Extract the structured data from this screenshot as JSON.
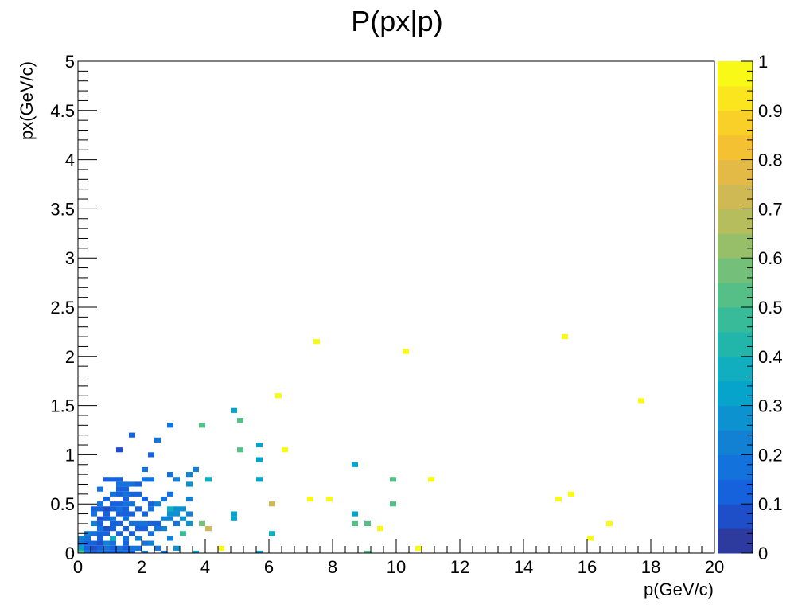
{
  "chart_data": {
    "type": "heatmap",
    "title": "P(px|p)",
    "xlabel": "p(GeV/c)",
    "ylabel": "px(GeV/c)",
    "xlim": [
      0,
      20
    ],
    "ylim": [
      0,
      5
    ],
    "zlim": [
      0,
      1
    ],
    "bin_width_x": 0.2,
    "bin_height_y": 0.05,
    "x_ticks": [
      0,
      2,
      4,
      6,
      8,
      10,
      12,
      14,
      16,
      18,
      20
    ],
    "x_tick_labels": [
      "0",
      "2",
      "4",
      "6",
      "8",
      "10",
      "12",
      "14",
      "16",
      "18",
      "20"
    ],
    "y_ticks": [
      0,
      0.5,
      1,
      1.5,
      2,
      2.5,
      3,
      3.5,
      4,
      4.5,
      5
    ],
    "y_tick_labels": [
      "0",
      "0.5",
      "1",
      "1.5",
      "2",
      "2.5",
      "3",
      "3.5",
      "4",
      "4.5",
      "5"
    ],
    "z_ticks": [
      0,
      0.1,
      0.2,
      0.3,
      0.4,
      0.5,
      0.6,
      0.7,
      0.8,
      0.9,
      1
    ],
    "z_tick_labels": [
      "0",
      "0.1",
      "0.2",
      "0.3",
      "0.4",
      "0.5",
      "0.6",
      "0.7",
      "0.8",
      "0.9",
      "1"
    ],
    "colormap": [
      "#2d3a9e",
      "#1f4fc8",
      "#1562dc",
      "#1472dc",
      "#1281d4",
      "#0c92cf",
      "#06a3ca",
      "#11aec0",
      "#22b6ab",
      "#38bb98",
      "#55bf87",
      "#74c07a",
      "#97bf6a",
      "#b5bd5d",
      "#cfb955",
      "#e4ba47",
      "#f4c132",
      "#f8d027",
      "#fae51e",
      "#f9f917"
    ],
    "cells": [
      [
        0.1,
        0.0,
        0.5
      ],
      [
        0.1,
        0.05,
        0.3
      ],
      [
        0.1,
        0.1,
        0.15
      ],
      [
        0.1,
        0.15,
        0.2
      ],
      [
        0.3,
        0.0,
        0.15
      ],
      [
        0.3,
        0.05,
        0.1
      ],
      [
        0.3,
        0.1,
        0.1
      ],
      [
        0.3,
        0.15,
        0.15
      ],
      [
        0.3,
        0.2,
        0.2
      ],
      [
        0.5,
        0.0,
        0.1
      ],
      [
        0.5,
        0.05,
        0.08
      ],
      [
        0.5,
        0.1,
        0.12
      ],
      [
        0.5,
        0.2,
        0.15
      ],
      [
        0.5,
        0.3,
        0.2
      ],
      [
        0.5,
        0.4,
        0.15
      ],
      [
        0.5,
        0.45,
        0.1
      ],
      [
        0.7,
        0.0,
        0.15
      ],
      [
        0.7,
        0.05,
        0.1
      ],
      [
        0.7,
        0.1,
        0.08
      ],
      [
        0.7,
        0.15,
        0.12
      ],
      [
        0.7,
        0.2,
        0.1
      ],
      [
        0.7,
        0.25,
        0.15
      ],
      [
        0.7,
        0.3,
        0.1
      ],
      [
        0.7,
        0.35,
        0.08
      ],
      [
        0.7,
        0.45,
        0.12
      ],
      [
        0.7,
        0.5,
        0.15
      ],
      [
        0.7,
        0.65,
        0.15
      ],
      [
        0.9,
        0.0,
        0.1
      ],
      [
        0.9,
        0.05,
        0.15
      ],
      [
        0.9,
        0.1,
        0.2
      ],
      [
        0.9,
        0.2,
        0.12
      ],
      [
        0.9,
        0.25,
        0.08
      ],
      [
        0.9,
        0.35,
        0.1
      ],
      [
        0.9,
        0.4,
        0.12
      ],
      [
        0.9,
        0.45,
        0.08
      ],
      [
        0.9,
        0.55,
        0.1
      ],
      [
        0.9,
        0.75,
        0.12
      ],
      [
        1.1,
        0.0,
        0.12
      ],
      [
        1.1,
        0.05,
        0.1
      ],
      [
        1.1,
        0.1,
        0.15
      ],
      [
        1.1,
        0.15,
        0.35
      ],
      [
        1.1,
        0.25,
        0.12
      ],
      [
        1.1,
        0.3,
        0.1
      ],
      [
        1.1,
        0.35,
        0.15
      ],
      [
        1.1,
        0.45,
        0.12
      ],
      [
        1.1,
        0.5,
        0.1
      ],
      [
        1.1,
        0.6,
        0.15
      ],
      [
        1.1,
        0.75,
        0.1
      ],
      [
        1.3,
        0.0,
        0.1
      ],
      [
        1.3,
        0.05,
        0.15
      ],
      [
        1.3,
        0.2,
        0.1
      ],
      [
        1.3,
        0.3,
        0.12
      ],
      [
        1.3,
        0.4,
        0.1
      ],
      [
        1.3,
        0.45,
        0.15
      ],
      [
        1.3,
        0.5,
        0.12
      ],
      [
        1.3,
        0.6,
        0.1
      ],
      [
        1.3,
        0.65,
        0.12
      ],
      [
        1.3,
        0.7,
        0.15
      ],
      [
        1.3,
        0.75,
        0.1
      ],
      [
        1.3,
        1.05,
        0.08
      ],
      [
        1.5,
        0.0,
        0.15
      ],
      [
        1.5,
        0.05,
        0.12
      ],
      [
        1.5,
        0.1,
        0.1
      ],
      [
        1.5,
        0.15,
        0.15
      ],
      [
        1.5,
        0.25,
        0.12
      ],
      [
        1.5,
        0.35,
        0.15
      ],
      [
        1.5,
        0.4,
        0.12
      ],
      [
        1.5,
        0.45,
        0.1
      ],
      [
        1.5,
        0.5,
        0.15
      ],
      [
        1.5,
        0.55,
        0.12
      ],
      [
        1.5,
        0.6,
        0.15
      ],
      [
        1.5,
        0.65,
        0.12
      ],
      [
        1.5,
        0.7,
        0.15
      ],
      [
        1.7,
        0.0,
        0.12
      ],
      [
        1.7,
        0.05,
        0.15
      ],
      [
        1.7,
        0.2,
        0.12
      ],
      [
        1.7,
        0.3,
        0.15
      ],
      [
        1.7,
        0.4,
        0.1
      ],
      [
        1.7,
        0.5,
        0.15
      ],
      [
        1.7,
        0.6,
        0.12
      ],
      [
        1.7,
        0.7,
        0.15
      ],
      [
        1.7,
        1.2,
        0.12
      ],
      [
        1.9,
        0.05,
        0.15
      ],
      [
        1.9,
        0.15,
        0.2
      ],
      [
        1.9,
        0.25,
        0.12
      ],
      [
        1.9,
        0.3,
        0.15
      ],
      [
        1.9,
        0.45,
        0.1
      ],
      [
        1.9,
        0.6,
        0.12
      ],
      [
        1.9,
        0.7,
        0.12
      ],
      [
        2.1,
        0.0,
        0.2
      ],
      [
        2.1,
        0.1,
        0.15
      ],
      [
        2.1,
        0.25,
        0.12
      ],
      [
        2.1,
        0.3,
        0.15
      ],
      [
        2.1,
        0.4,
        0.1
      ],
      [
        2.1,
        0.55,
        0.12
      ],
      [
        2.1,
        0.75,
        0.15
      ],
      [
        2.1,
        0.85,
        0.15
      ],
      [
        2.3,
        0.1,
        0.2
      ],
      [
        2.3,
        0.2,
        0.15
      ],
      [
        2.3,
        0.3,
        0.12
      ],
      [
        2.3,
        0.45,
        0.15
      ],
      [
        2.3,
        0.5,
        0.12
      ],
      [
        2.3,
        0.75,
        0.15
      ],
      [
        2.3,
        1.0,
        0.12
      ],
      [
        2.5,
        0.05,
        0.15
      ],
      [
        2.5,
        0.25,
        0.15
      ],
      [
        2.5,
        0.3,
        0.12
      ],
      [
        2.5,
        0.5,
        0.2
      ],
      [
        2.5,
        1.15,
        0.15
      ],
      [
        2.7,
        0.0,
        0.15
      ],
      [
        2.7,
        0.25,
        0.2
      ],
      [
        2.7,
        0.35,
        0.2
      ],
      [
        2.7,
        0.55,
        0.15
      ],
      [
        2.9,
        0.15,
        0.2
      ],
      [
        2.9,
        0.35,
        0.2
      ],
      [
        2.9,
        0.4,
        0.25
      ],
      [
        2.9,
        0.45,
        0.35
      ],
      [
        2.9,
        0.6,
        0.15
      ],
      [
        2.9,
        0.8,
        0.15
      ],
      [
        2.9,
        1.3,
        0.15
      ],
      [
        3.1,
        0.05,
        0.25
      ],
      [
        3.1,
        0.3,
        0.15
      ],
      [
        3.1,
        0.4,
        0.25
      ],
      [
        3.1,
        0.45,
        0.25
      ],
      [
        3.1,
        0.75,
        0.2
      ],
      [
        3.3,
        0.2,
        0.45
      ],
      [
        3.3,
        0.35,
        0.25
      ],
      [
        3.3,
        0.45,
        0.25
      ],
      [
        3.5,
        0.3,
        0.25
      ],
      [
        3.5,
        0.4,
        0.2
      ],
      [
        3.5,
        0.55,
        0.2
      ],
      [
        3.5,
        0.7,
        0.25
      ],
      [
        3.5,
        0.8,
        0.2
      ],
      [
        3.7,
        0.0,
        0.3
      ],
      [
        3.7,
        0.85,
        0.2
      ],
      [
        3.9,
        0.3,
        0.55
      ],
      [
        3.9,
        1.3,
        0.5
      ],
      [
        4.1,
        0.25,
        0.7
      ],
      [
        4.1,
        0.75,
        0.35
      ],
      [
        4.5,
        0.05,
        0.95
      ],
      [
        4.9,
        0.35,
        0.3
      ],
      [
        4.9,
        0.4,
        0.3
      ],
      [
        4.9,
        1.45,
        0.3
      ],
      [
        5.1,
        1.05,
        0.5
      ],
      [
        5.1,
        1.35,
        0.5
      ],
      [
        5.7,
        0.0,
        0.3
      ],
      [
        5.7,
        0.75,
        0.3
      ],
      [
        5.7,
        0.95,
        0.3
      ],
      [
        5.7,
        1.1,
        0.3
      ],
      [
        6.1,
        0.2,
        0.35
      ],
      [
        6.1,
        0.5,
        0.7
      ],
      [
        6.3,
        1.6,
        0.95
      ],
      [
        6.5,
        1.05,
        0.95
      ],
      [
        7.3,
        0.55,
        0.95
      ],
      [
        7.5,
        2.15,
        0.95
      ],
      [
        7.9,
        0.55,
        0.95
      ],
      [
        8.7,
        0.3,
        0.5
      ],
      [
        8.7,
        0.4,
        0.3
      ],
      [
        8.7,
        0.9,
        0.3
      ],
      [
        9.1,
        0.0,
        0.5
      ],
      [
        9.1,
        0.3,
        0.5
      ],
      [
        9.5,
        0.25,
        0.95
      ],
      [
        9.9,
        0.5,
        0.5
      ],
      [
        9.9,
        0.75,
        0.5
      ],
      [
        10.3,
        2.05,
        0.95
      ],
      [
        10.7,
        0.05,
        0.95
      ],
      [
        11.1,
        0.75,
        0.95
      ],
      [
        15.1,
        0.55,
        0.95
      ],
      [
        15.3,
        2.2,
        0.95
      ],
      [
        15.5,
        0.6,
        0.95
      ],
      [
        16.1,
        0.15,
        0.95
      ],
      [
        16.7,
        0.3,
        0.95
      ],
      [
        17.7,
        1.55,
        0.95
      ]
    ]
  }
}
